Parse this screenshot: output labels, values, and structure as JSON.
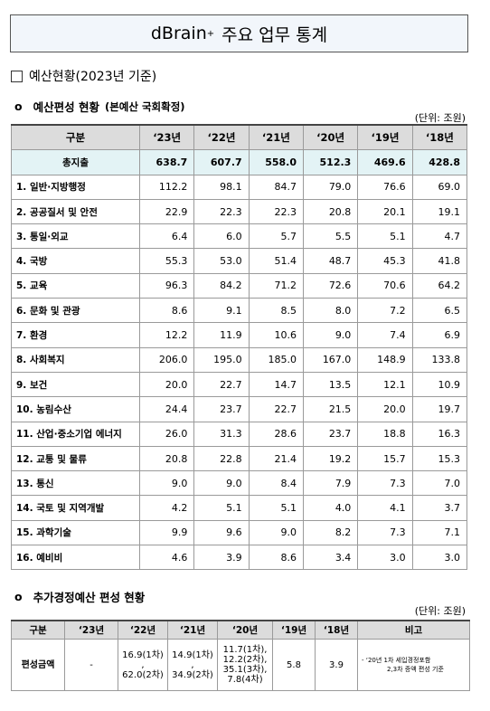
{
  "title": {
    "main": "dBrain",
    "sup": "+",
    "rest": "주요 업무 통계"
  },
  "section": {
    "label": "예산현황(2023년 기준)"
  },
  "budget": {
    "heading": "예산편성 현황",
    "note": "(본예산 국회확정)",
    "unit": "(단위: 조원)",
    "columns": [
      "구분",
      "‘23년",
      "‘22년",
      "‘21년",
      "‘20년",
      "‘19년",
      "‘18년"
    ],
    "total": {
      "label": "총지출",
      "values": [
        "638.7",
        "607.7",
        "558.0",
        "512.3",
        "469.6",
        "428.8"
      ]
    },
    "rows": [
      {
        "label": "1. 일반·지방행정",
        "values": [
          "112.2",
          "98.1",
          "84.7",
          "79.0",
          "76.6",
          "69.0"
        ]
      },
      {
        "label": "2. 공공질서 및 안전",
        "values": [
          "22.9",
          "22.3",
          "22.3",
          "20.8",
          "20.1",
          "19.1"
        ]
      },
      {
        "label": "3. 통일·외교",
        "values": [
          "6.4",
          "6.0",
          "5.7",
          "5.5",
          "5.1",
          "4.7"
        ]
      },
      {
        "label": "4. 국방",
        "values": [
          "55.3",
          "53.0",
          "51.4",
          "48.7",
          "45.3",
          "41.8"
        ]
      },
      {
        "label": "5. 교육",
        "values": [
          "96.3",
          "84.2",
          "71.2",
          "72.6",
          "70.6",
          "64.2"
        ]
      },
      {
        "label": "6. 문화 및 관광",
        "values": [
          "8.6",
          "9.1",
          "8.5",
          "8.0",
          "7.2",
          "6.5"
        ]
      },
      {
        "label": "7. 환경",
        "values": [
          "12.2",
          "11.9",
          "10.6",
          "9.0",
          "7.4",
          "6.9"
        ]
      },
      {
        "label": "8. 사회복지",
        "values": [
          "206.0",
          "195.0",
          "185.0",
          "167.0",
          "148.9",
          "133.8"
        ]
      },
      {
        "label": "9. 보건",
        "values": [
          "20.0",
          "22.7",
          "14.7",
          "13.5",
          "12.1",
          "10.9"
        ]
      },
      {
        "label": "10. 농림수산",
        "values": [
          "24.4",
          "23.7",
          "22.7",
          "21.5",
          "20.0",
          "19.7"
        ]
      },
      {
        "label": "11. 산업·중소기업 에너지",
        "values": [
          "26.0",
          "31.3",
          "28.6",
          "23.7",
          "18.8",
          "16.3"
        ]
      },
      {
        "label": "12. 교통 및 물류",
        "values": [
          "20.8",
          "22.8",
          "21.4",
          "19.2",
          "15.7",
          "15.3"
        ]
      },
      {
        "label": "13. 통신",
        "values": [
          "9.0",
          "9.0",
          "8.4",
          "7.9",
          "7.3",
          "7.0"
        ]
      },
      {
        "label": "14. 국토 및 지역개발",
        "values": [
          "4.2",
          "5.1",
          "5.1",
          "4.0",
          "4.1",
          "3.7"
        ]
      },
      {
        "label": "15. 과학기술",
        "values": [
          "9.9",
          "9.6",
          "9.0",
          "8.2",
          "7.3",
          "7.1"
        ]
      },
      {
        "label": "16. 예비비",
        "values": [
          "4.6",
          "3.9",
          "8.6",
          "3.4",
          "3.0",
          "3.0"
        ]
      }
    ]
  },
  "supplementary": {
    "heading": "추가경정예산 편성 현황",
    "unit": "(단위: 조원)",
    "columns": [
      "구분",
      "‘23년",
      "‘22년",
      "‘21년",
      "‘20년",
      "‘19년",
      "‘18년",
      "비고"
    ],
    "row": {
      "label": "편성금액",
      "y23": "-",
      "y22": [
        "16.9(1차)",
        ",",
        "62.0(2차)"
      ],
      "y21": [
        "14.9(1차)",
        ",",
        "34.9(2차)"
      ],
      "y20": [
        "11.7(1차),",
        "12.2(2차),",
        "35.1(3차),",
        "7.8(4차)"
      ],
      "y19": "5.8",
      "y18": "3.9",
      "note": [
        "- ‘20년 1차 세입경정포함",
        "2,3차 증액 편성 기준"
      ]
    }
  }
}
